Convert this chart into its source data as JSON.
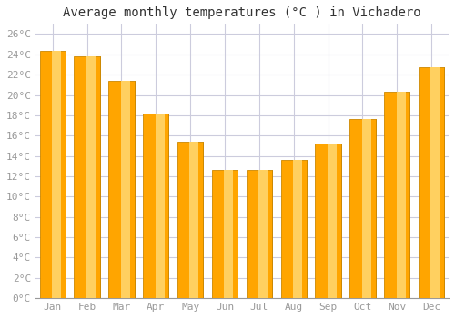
{
  "title": "Average monthly temperatures (°C ) in Vichadero",
  "months": [
    "Jan",
    "Feb",
    "Mar",
    "Apr",
    "May",
    "Jun",
    "Jul",
    "Aug",
    "Sep",
    "Oct",
    "Nov",
    "Dec"
  ],
  "values": [
    24.3,
    23.8,
    21.4,
    18.2,
    15.4,
    12.6,
    12.6,
    13.6,
    15.2,
    17.6,
    20.3,
    22.7
  ],
  "bar_color": "#FFA500",
  "bar_edge_color": "#CC8800",
  "background_color": "#FFFFFF",
  "grid_color": "#CCCCDD",
  "ylim": [
    0,
    27
  ],
  "ytick_step": 2,
  "title_fontsize": 10,
  "tick_fontsize": 8,
  "tick_color": "#999999",
  "font_family": "monospace"
}
